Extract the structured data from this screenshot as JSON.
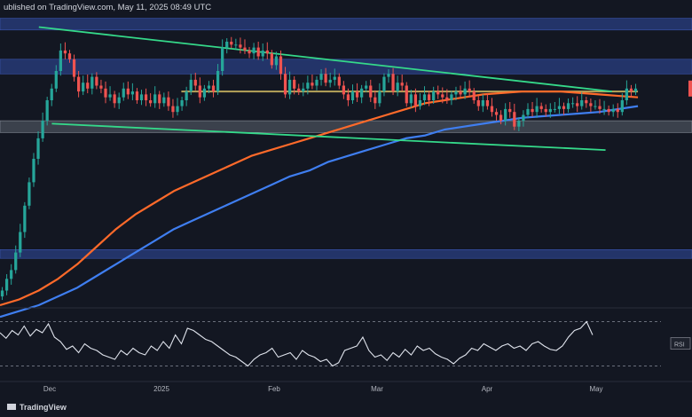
{
  "header": {
    "attribution": "ublished on TradingView.com, May 11, 2025 08:49 UTC"
  },
  "colors": {
    "background": "#131722",
    "zone": "#2a3f82",
    "zone_grey": "#5d6470",
    "trendline": "#35d98a",
    "sma_fast": "#ff6a2a",
    "sma_slow": "#3f7ef0",
    "horizontal_level": "#b7a45a",
    "bull": "#26a69a",
    "bear": "#ef5350",
    "rsi": "#dfe3ec"
  },
  "logo": {
    "text": "TradingView"
  },
  "chart_data": {
    "type": "candlestick",
    "instrument": "",
    "timeframe": "",
    "x_ticks": [
      "Dec",
      "2025",
      "Feb",
      "Mar",
      "Apr",
      "May"
    ],
    "zones": [
      {
        "y_range": [
          0.94,
          0.98
        ],
        "style": "supply",
        "label": ""
      },
      {
        "y_range": [
          0.79,
          0.84
        ],
        "style": "supply",
        "label": ""
      },
      {
        "y_range": [
          0.59,
          0.63
        ],
        "style": "support-grey",
        "label": ""
      },
      {
        "y_range": [
          0.16,
          0.19
        ],
        "style": "demand",
        "label": ""
      }
    ],
    "trendlines": [
      {
        "name": "",
        "from": [
          0.06,
          0.95
        ],
        "to": [
          0.945,
          0.73
        ]
      },
      {
        "name": "",
        "from": [
          0.08,
          0.62
        ],
        "to": [
          0.935,
          0.53
        ]
      }
    ],
    "horizontal_level": 0.73,
    "candles_close": [
      0.05,
      0.09,
      0.12,
      0.18,
      0.25,
      0.34,
      0.42,
      0.5,
      0.57,
      0.63,
      0.7,
      0.74,
      0.8,
      0.87,
      0.86,
      0.84,
      0.78,
      0.73,
      0.76,
      0.74,
      0.78,
      0.75,
      0.74,
      0.71,
      0.72,
      0.69,
      0.71,
      0.74,
      0.72,
      0.73,
      0.7,
      0.72,
      0.7,
      0.69,
      0.72,
      0.69,
      0.71,
      0.68,
      0.66,
      0.68,
      0.7,
      0.73,
      0.77,
      0.75,
      0.71,
      0.74,
      0.75,
      0.73,
      0.8,
      0.88,
      0.9,
      0.89,
      0.89,
      0.88,
      0.87,
      0.86,
      0.88,
      0.85,
      0.87,
      0.86,
      0.82,
      0.85,
      0.79,
      0.72,
      0.77,
      0.74,
      0.73,
      0.74,
      0.76,
      0.75,
      0.77,
      0.79,
      0.76,
      0.77,
      0.78,
      0.75,
      0.72,
      0.7,
      0.73,
      0.71,
      0.74,
      0.75,
      0.71,
      0.69,
      0.73,
      0.78,
      0.79,
      0.73,
      0.76,
      0.75,
      0.69,
      0.72,
      0.68,
      0.7,
      0.72,
      0.7,
      0.73,
      0.72,
      0.71,
      0.7,
      0.72,
      0.73,
      0.72,
      0.74,
      0.73,
      0.7,
      0.68,
      0.7,
      0.68,
      0.66,
      0.65,
      0.63,
      0.67,
      0.66,
      0.61,
      0.63,
      0.65,
      0.67,
      0.66,
      0.68,
      0.67,
      0.66,
      0.67,
      0.67,
      0.68,
      0.67,
      0.69,
      0.69,
      0.68,
      0.7,
      0.69,
      0.68,
      0.68,
      0.67,
      0.67,
      0.66,
      0.67,
      0.66,
      0.7,
      0.74,
      0.73,
      0.74
    ],
    "sma_fast": [
      0.0,
      0.02,
      0.05,
      0.09,
      0.14,
      0.2,
      0.26,
      0.31,
      0.35,
      0.39,
      0.42,
      0.45,
      0.48,
      0.51,
      0.53,
      0.55,
      0.57,
      0.59,
      0.61,
      0.63,
      0.65,
      0.67,
      0.69,
      0.7,
      0.71,
      0.72,
      0.725,
      0.73,
      0.73,
      0.73,
      0.725,
      0.72,
      0.715,
      0.71
    ],
    "sma_slow": [
      -0.04,
      -0.02,
      0.0,
      0.03,
      0.06,
      0.1,
      0.14,
      0.18,
      0.22,
      0.26,
      0.29,
      0.32,
      0.35,
      0.38,
      0.41,
      0.44,
      0.46,
      0.49,
      0.51,
      0.53,
      0.55,
      0.57,
      0.58,
      0.6,
      0.61,
      0.62,
      0.63,
      0.64,
      0.645,
      0.65,
      0.655,
      0.66,
      0.67,
      0.68
    ],
    "rsi": {
      "label": "RSI",
      "values": [
        60,
        55,
        62,
        58,
        66,
        57,
        63,
        60,
        68,
        56,
        52,
        45,
        48,
        42,
        50,
        46,
        44,
        40,
        38,
        36,
        44,
        40,
        46,
        42,
        40,
        48,
        44,
        52,
        46,
        58,
        50,
        64,
        62,
        58,
        54,
        52,
        48,
        44,
        40,
        38,
        34,
        30,
        36,
        40,
        42,
        46,
        38,
        40,
        42,
        36,
        44,
        40,
        38,
        34,
        36,
        30,
        33,
        44,
        46,
        48,
        56,
        44,
        38,
        40,
        35,
        42,
        38,
        45,
        40,
        48,
        44,
        46,
        41,
        38,
        36,
        32,
        37,
        40,
        46,
        44,
        50,
        47,
        44,
        48,
        50,
        46,
        48,
        44,
        50,
        52,
        48,
        45,
        44,
        48,
        56,
        62,
        64,
        70,
        58
      ],
      "overbought": 70,
      "oversold": 30
    }
  }
}
